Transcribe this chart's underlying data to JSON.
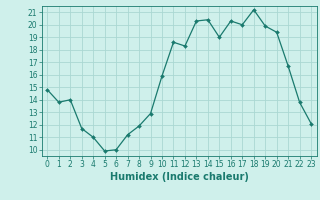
{
  "x": [
    0,
    1,
    2,
    3,
    4,
    5,
    6,
    7,
    8,
    9,
    10,
    11,
    12,
    13,
    14,
    15,
    16,
    17,
    18,
    19,
    20,
    21,
    22,
    23
  ],
  "y": [
    14.8,
    13.8,
    14.0,
    11.7,
    11.0,
    9.9,
    10.0,
    11.2,
    11.9,
    12.9,
    15.9,
    18.6,
    18.3,
    20.3,
    20.4,
    19.0,
    20.3,
    20.0,
    21.2,
    19.9,
    19.4,
    16.7,
    13.8,
    12.1
  ],
  "line_color": "#1a7a6e",
  "marker": "D",
  "marker_size": 2.0,
  "bg_color": "#cff0eb",
  "grid_color": "#aad8d3",
  "xlabel": "Humidex (Indice chaleur)",
  "ylim": [
    9.5,
    21.5
  ],
  "xlim": [
    -0.5,
    23.5
  ],
  "yticks": [
    10,
    11,
    12,
    13,
    14,
    15,
    16,
    17,
    18,
    19,
    20,
    21
  ],
  "xticks": [
    0,
    1,
    2,
    3,
    4,
    5,
    6,
    7,
    8,
    9,
    10,
    11,
    12,
    13,
    14,
    15,
    16,
    17,
    18,
    19,
    20,
    21,
    22,
    23
  ],
  "tick_color": "#1a7a6e",
  "label_fontsize": 7,
  "tick_fontsize": 5.5,
  "line_width": 0.9
}
